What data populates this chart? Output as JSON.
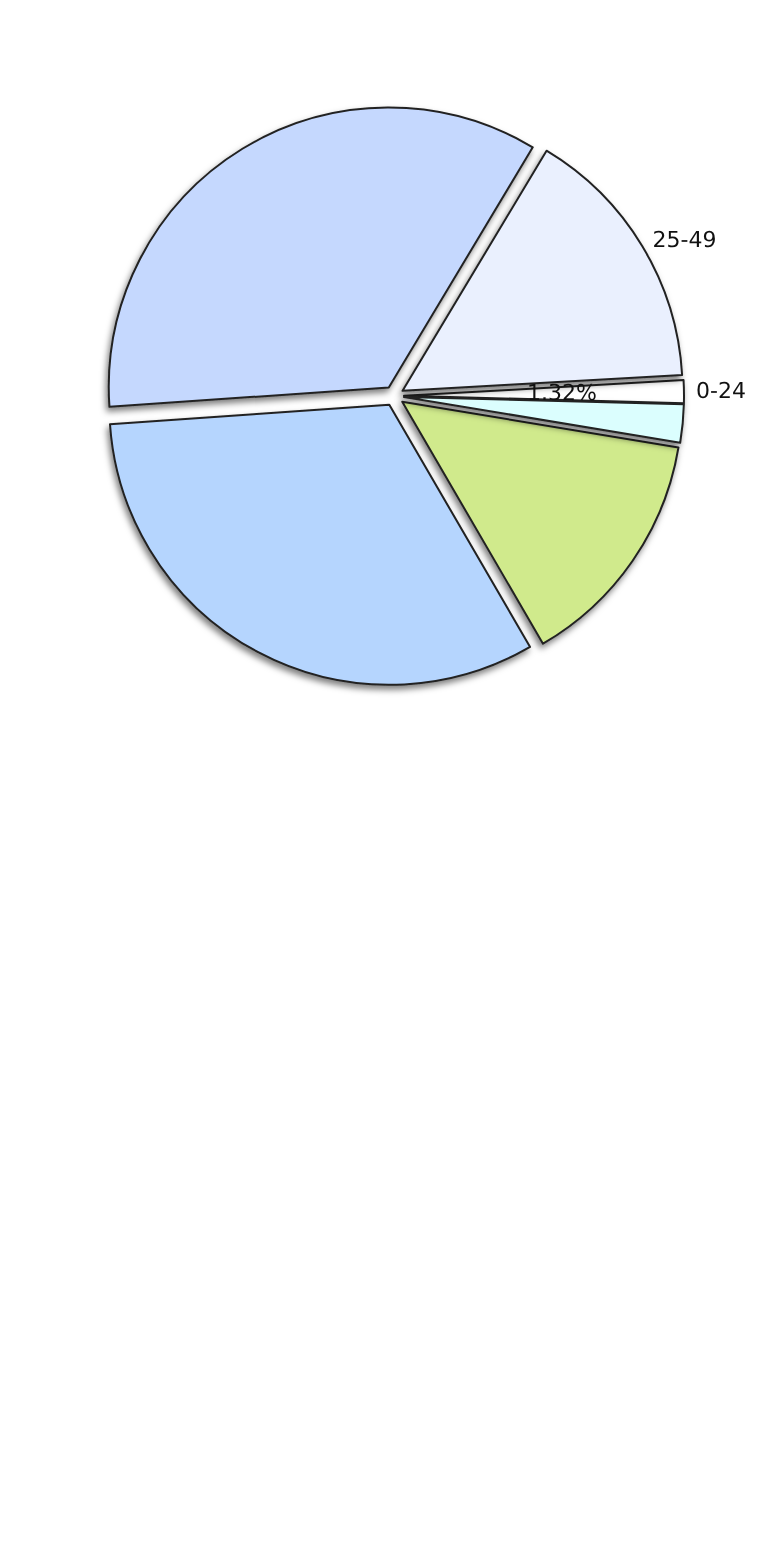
{
  "chart_data": {
    "type": "pie",
    "categories": [
      "0-24",
      "25-49",
      null,
      null,
      null,
      null
    ],
    "values": [
      1.32,
      15.5,
      34.7,
      32.28,
      14,
      2.2
    ],
    "colors": [
      "#ffffff",
      "#eaf0fe",
      "#c5d8fe",
      "#b5d5fe",
      "#d0ea8c",
      "#dbfefe"
    ],
    "value_labels": [
      "1.32%",
      null,
      null,
      null,
      null,
      null
    ],
    "legend": false
  }
}
